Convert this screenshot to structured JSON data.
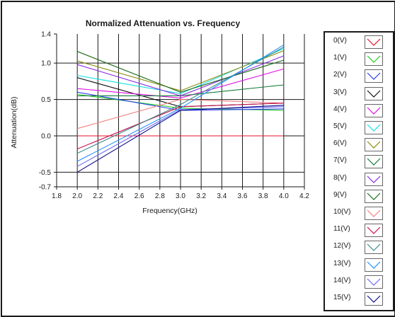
{
  "chart_data": {
    "type": "line",
    "title": "Normalized Attenuation vs. Frequency",
    "xlabel": "Frequency(GHz)",
    "ylabel": "Attenuation(dB)",
    "xlim": [
      1.8,
      4.2
    ],
    "ylim": [
      -0.7,
      1.4
    ],
    "xticks": [
      "1.8",
      "2.0",
      "2.2",
      "2.4",
      "2.6",
      "2.8",
      "3.0",
      "3.2",
      "3.4",
      "3.6",
      "3.8",
      "4.0",
      "4.2"
    ],
    "yticks": [
      "1.4",
      "1.0",
      "0.5",
      "0.0",
      "-0.5",
      "-0.7"
    ],
    "grid": true,
    "legend_position": "right",
    "x": [
      2.0,
      3.0,
      4.0
    ],
    "series": [
      {
        "name": "0(V)",
        "color": "#e8102a",
        "values": [
          0.0,
          0.0,
          0.0
        ]
      },
      {
        "name": "1(V)",
        "color": "#22cc22",
        "values": [
          0.57,
          0.38,
          0.35
        ]
      },
      {
        "name": "2(V)",
        "color": "#2a3cf0",
        "values": [
          0.6,
          0.35,
          0.37
        ]
      },
      {
        "name": "3(V)",
        "color": "#111111",
        "values": [
          0.8,
          0.4,
          0.45
        ]
      },
      {
        "name": "4(V)",
        "color": "#e010e0",
        "values": [
          0.65,
          0.52,
          0.92
        ]
      },
      {
        "name": "5(V)",
        "color": "#10e0e0",
        "values": [
          0.83,
          0.58,
          1.2
        ]
      },
      {
        "name": "6(V)",
        "color": "#8a8a10",
        "values": [
          1.03,
          0.62,
          1.17
        ]
      },
      {
        "name": "7(V)",
        "color": "#157a3a",
        "values": [
          0.55,
          0.55,
          0.7
        ]
      },
      {
        "name": "8(V)",
        "color": "#8a2be2",
        "values": [
          0.98,
          0.55,
          1.1
        ]
      },
      {
        "name": "9(V)",
        "color": "#1a6a1a",
        "values": [
          1.16,
          0.6,
          1.04
        ]
      },
      {
        "name": "10(V)",
        "color": "#f08080",
        "values": [
          0.1,
          0.5,
          0.45
        ]
      },
      {
        "name": "11(V)",
        "color": "#cc1050",
        "values": [
          -0.18,
          0.4,
          0.45
        ]
      },
      {
        "name": "12(V)",
        "color": "#3a8a8a",
        "values": [
          -0.24,
          0.43,
          1.22
        ]
      },
      {
        "name": "13(V)",
        "color": "#1e90ff",
        "values": [
          -0.35,
          0.38,
          1.25
        ]
      },
      {
        "name": "14(V)",
        "color": "#6a6af0",
        "values": [
          -0.42,
          0.36,
          0.4
        ]
      },
      {
        "name": "15(V)",
        "color": "#0a0a8a",
        "values": [
          -0.5,
          0.35,
          0.42
        ]
      }
    ]
  }
}
